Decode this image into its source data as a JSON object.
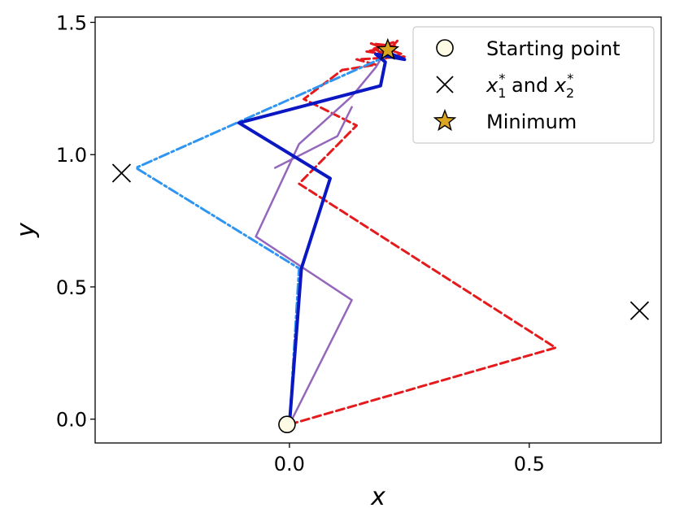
{
  "chart_data": {
    "type": "line",
    "title": "",
    "xlabel": "x",
    "ylabel": "y",
    "xlim": [
      -0.405,
      0.775
    ],
    "ylim": [
      -0.09,
      1.52
    ],
    "x_ticks": [
      0.0,
      0.5
    ],
    "x_tick_labels": [
      "0.0",
      "0.5"
    ],
    "y_ticks": [
      0.0,
      0.5,
      1.0,
      1.5
    ],
    "y_tick_labels": [
      "0.0",
      "0.5",
      "1.0",
      "1.5"
    ],
    "grid": false,
    "legend_position": "top-right",
    "series": [
      {
        "color": "#e41a1c",
        "style": "dashed",
        "width": 3,
        "points": [
          [
            0,
            -0.02
          ],
          [
            0.555,
            0.27
          ],
          [
            0.02,
            0.89
          ],
          [
            0.14,
            1.11
          ],
          [
            0.03,
            1.21
          ],
          [
            0.11,
            1.32
          ],
          [
            0.18,
            1.34
          ],
          [
            0.14,
            1.36
          ],
          [
            0.24,
            1.37
          ],
          [
            0.16,
            1.39
          ],
          [
            0.22,
            1.41
          ],
          [
            0.17,
            1.42
          ],
          [
            0.235,
            1.38
          ],
          [
            0.19,
            1.36
          ],
          [
            0.225,
            1.43
          ],
          [
            0.175,
            1.4
          ],
          [
            0.215,
            1.37
          ],
          [
            0.2,
            1.395
          ]
        ]
      },
      {
        "color": "#9467bd",
        "style": "solid",
        "width": 2.5,
        "points": [
          [
            0,
            -0.02
          ],
          [
            0.13,
            0.45
          ],
          [
            -0.07,
            0.69
          ],
          [
            0.02,
            1.04
          ],
          [
            0.13,
            1.22
          ],
          [
            0.18,
            1.33
          ],
          [
            0.2,
            1.39
          ]
        ]
      },
      {
        "color": "#9467bd",
        "style": "solid",
        "width": 2.5,
        "points": [
          [
            -0.03,
            0.95
          ],
          [
            0.1,
            1.07
          ],
          [
            0.13,
            1.18
          ]
        ]
      },
      {
        "color": "#2f95f0",
        "style": "dashdot",
        "width": 3,
        "points": [
          [
            0,
            -0.02
          ],
          [
            0.02,
            0.57
          ],
          [
            -0.32,
            0.95
          ],
          [
            0.2,
            1.37
          ],
          [
            0.2,
            1.39
          ]
        ]
      },
      {
        "color": "#0a17c2",
        "style": "solid",
        "width": 4,
        "points": [
          [
            0,
            -0.02
          ],
          [
            0.025,
            0.57
          ],
          [
            0.085,
            0.91
          ],
          [
            -0.105,
            1.12
          ],
          [
            0.19,
            1.26
          ],
          [
            0.2,
            1.35
          ],
          [
            0.18,
            1.38
          ],
          [
            0.24,
            1.36
          ],
          [
            0.2,
            1.39
          ]
        ]
      }
    ],
    "markers": {
      "starting_point": [
        -0.005,
        -0.02
      ],
      "x_star_points": [
        [
          -0.35,
          0.93
        ],
        [
          0.73,
          0.41
        ]
      ],
      "minimum": [
        0.205,
        1.395
      ]
    },
    "legend": [
      {
        "marker": "circle",
        "label": "Starting point"
      },
      {
        "marker": "x",
        "label_main": "x",
        "label_sub1": "1",
        "label_sup1": "*",
        "label_mid": " and ",
        "label_main2": "x",
        "label_sub2": "2",
        "label_sup2": "*"
      },
      {
        "marker": "star",
        "label": "Minimum"
      }
    ],
    "colors": {
      "marker_fill_circle": "#fdfbe3",
      "marker_fill_star": "#daa520",
      "axis": "#000000"
    }
  }
}
